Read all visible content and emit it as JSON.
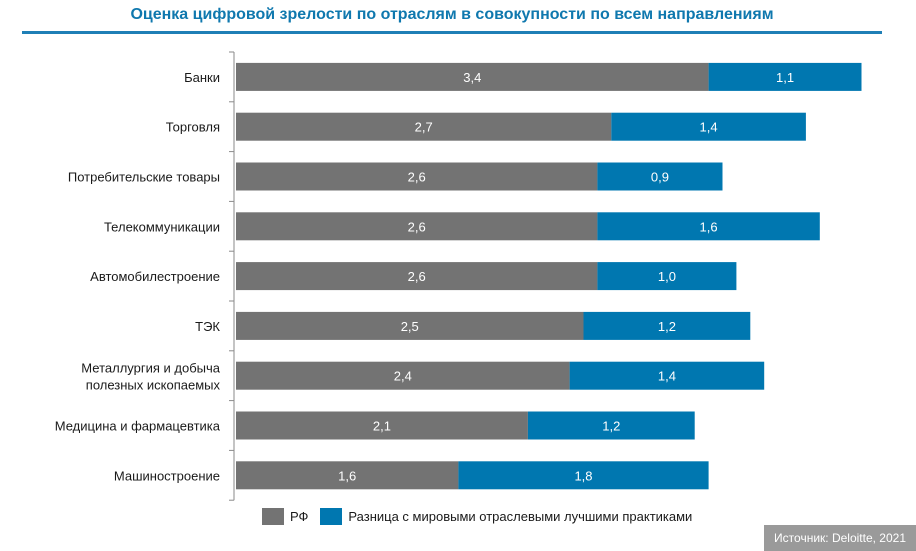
{
  "chart_data": {
    "type": "bar",
    "orientation": "horizontal",
    "stacked": true,
    "title": "Оценка цифровой зрелости по отраслям в совокупности по всем направлениям",
    "categories": [
      "Банки",
      "Торговля",
      "Потребительские товары",
      "Телекоммуникации",
      "Автомобилестроение",
      "ТЭК",
      "Металлургия и добыча полезных ископаемых",
      "Медицина и фармацевтика",
      "Машиностроение"
    ],
    "series": [
      {
        "name": "РФ",
        "color": "#737373",
        "values": [
          3.4,
          2.7,
          2.6,
          2.6,
          2.6,
          2.5,
          2.4,
          2.1,
          1.6
        ]
      },
      {
        "name": "Разница с мировыми отраслевыми лучшими практиками",
        "color": "#0077b0",
        "values": [
          1.1,
          1.4,
          0.9,
          1.6,
          1.0,
          1.2,
          1.4,
          1.2,
          1.8
        ]
      }
    ],
    "value_labels": [
      [
        "3,4",
        "2,7",
        "2,6",
        "2,6",
        "2,6",
        "2,5",
        "2,4",
        "2,1",
        "1,6"
      ],
      [
        "1,1",
        "1,4",
        "0,9",
        "1,6",
        "1,0",
        "1,2",
        "1,4",
        "1,2",
        "1,8"
      ]
    ],
    "xlim": [
      0,
      4.5
    ],
    "grid": false,
    "legend_position": "bottom"
  },
  "source": "Источник: Deloitte, 2021"
}
